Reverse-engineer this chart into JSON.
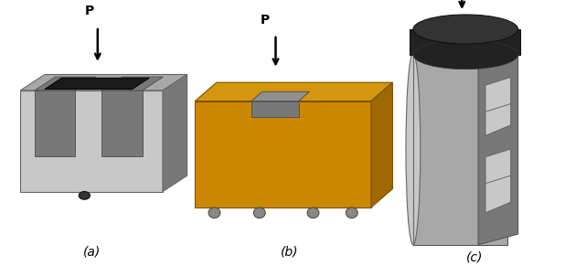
{
  "background_color": "#ffffff",
  "labels": [
    "(a)",
    "(b)",
    "(c)"
  ],
  "figsize": [
    6.18,
    2.91
  ],
  "dpi": 100,
  "gray_light": "#c8c8c8",
  "gray_mid": "#a8a8a8",
  "gray_dark": "#787878",
  "gray_darker": "#585858",
  "orange_top": "#d4960c",
  "orange_front": "#cc8800",
  "orange_right": "#a06800",
  "black_cap": "#222222",
  "black_cap_top": "#333333",
  "platen_top": "#909090",
  "platen_front": "#787878",
  "hole_fill": "#909090",
  "roller_color": "#888888"
}
